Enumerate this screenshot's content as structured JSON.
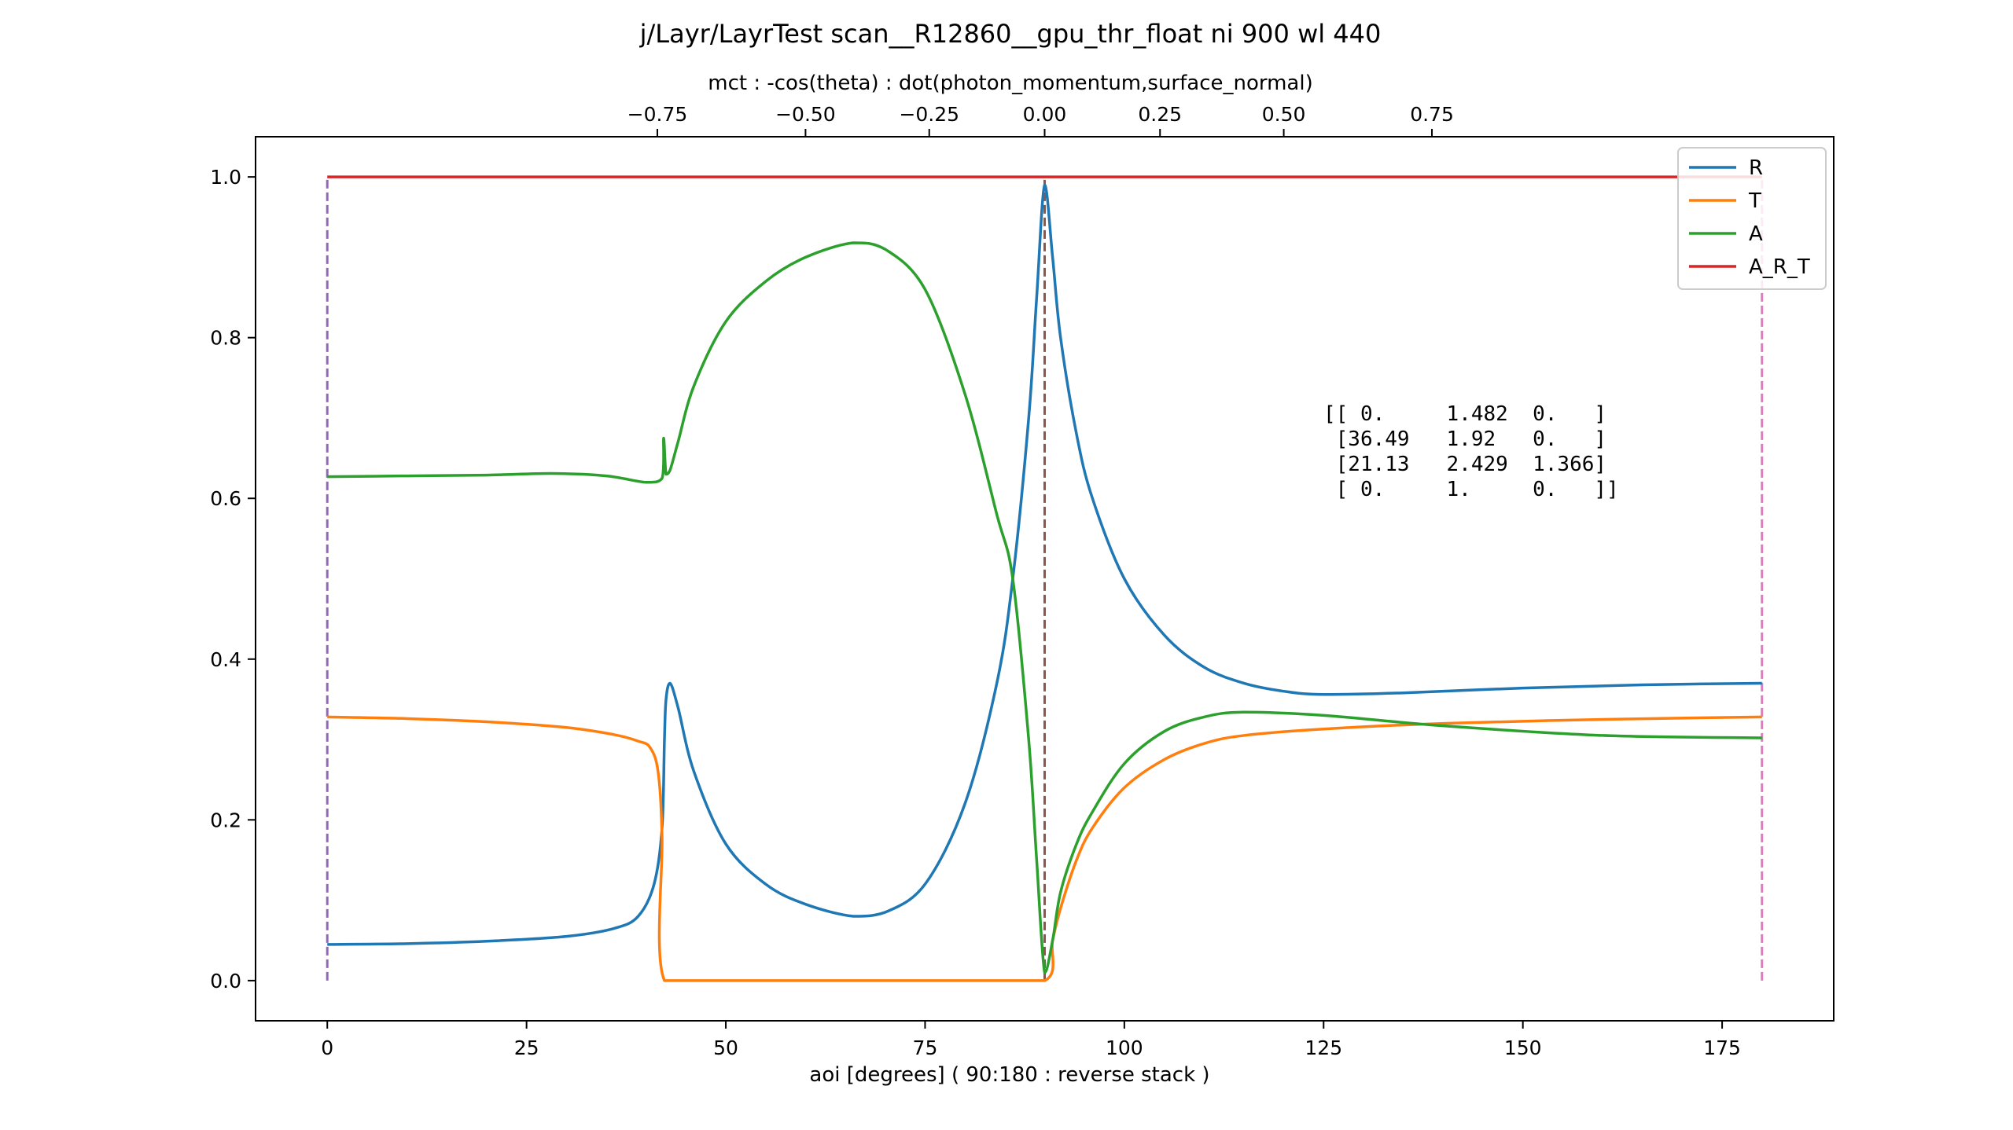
{
  "chart_data": {
    "type": "line",
    "title": "j/Layr/LayrTest scan__R12860__gpu_thr_float ni 900 wl 440",
    "xlabel": "aoi [degrees] ( 90:180 : reverse stack )",
    "ylabel": "",
    "top_xlabel": "mct : -cos(theta) : dot(photon_momentum,surface_normal)",
    "xlim": [
      -9,
      189
    ],
    "ylim": [
      -0.05,
      1.05
    ],
    "x_ticks": [
      0,
      25,
      50,
      75,
      100,
      125,
      150,
      175
    ],
    "x_tick_labels": [
      "0",
      "25",
      "50",
      "75",
      "100",
      "125",
      "150",
      "175"
    ],
    "y_ticks": [
      0.0,
      0.2,
      0.4,
      0.6,
      0.8,
      1.0
    ],
    "y_tick_labels": [
      "0.0",
      "0.2",
      "0.4",
      "0.6",
      "0.8",
      "1.0"
    ],
    "top_ticks": [
      -0.75,
      -0.5,
      -0.25,
      0.0,
      0.25,
      0.5,
      0.75
    ],
    "top_tick_labels": [
      "−0.75",
      "−0.50",
      "−0.25",
      "0.00",
      "0.25",
      "0.50",
      "0.75"
    ],
    "grid": false,
    "legend_position": "top-right",
    "series": [
      {
        "name": "R",
        "color": "#1f77b4",
        "x": [
          0,
          10,
          20,
          30,
          36,
          39,
          41,
          42,
          42.3,
          42.5,
          43,
          44,
          46,
          50,
          55,
          60,
          66,
          70,
          75,
          80,
          84,
          86,
          88,
          89,
          90,
          91,
          92,
          94,
          96,
          100,
          105,
          110,
          115,
          120,
          125,
          135,
          150,
          165,
          180
        ],
        "y": [
          0.045,
          0.046,
          0.049,
          0.055,
          0.065,
          0.08,
          0.12,
          0.19,
          0.3,
          0.35,
          0.37,
          0.34,
          0.26,
          0.17,
          0.12,
          0.095,
          0.08,
          0.085,
          0.12,
          0.22,
          0.37,
          0.5,
          0.7,
          0.85,
          0.99,
          0.9,
          0.8,
          0.68,
          0.6,
          0.5,
          0.43,
          0.39,
          0.37,
          0.36,
          0.356,
          0.358,
          0.364,
          0.368,
          0.37
        ]
      },
      {
        "name": "T",
        "color": "#ff7f0e",
        "x": [
          0,
          10,
          20,
          30,
          36,
          39,
          40.5,
          41.5,
          42,
          42.3,
          50,
          60,
          70,
          80,
          90,
          91,
          92,
          94,
          96,
          100,
          105,
          110,
          115,
          125,
          140,
          160,
          180
        ],
        "y": [
          0.328,
          0.326,
          0.322,
          0.315,
          0.306,
          0.298,
          0.29,
          0.26,
          0.18,
          0.0,
          0.0,
          0.0,
          0.0,
          0.0,
          0.0,
          0.05,
          0.09,
          0.15,
          0.19,
          0.24,
          0.275,
          0.295,
          0.305,
          0.313,
          0.32,
          0.325,
          0.328
        ]
      },
      {
        "name": "A",
        "color": "#2ca02c",
        "x": [
          0,
          10,
          20,
          28,
          35,
          40,
          42,
          42.2,
          42.5,
          43,
          44,
          46,
          50,
          55,
          60,
          66,
          70,
          75,
          80,
          84,
          86,
          88,
          89,
          90,
          91,
          92,
          94,
          96,
          100,
          105,
          110,
          115,
          125,
          140,
          160,
          180
        ],
        "y": [
          0.627,
          0.628,
          0.629,
          0.631,
          0.628,
          0.62,
          0.625,
          0.675,
          0.63,
          0.635,
          0.67,
          0.74,
          0.82,
          0.87,
          0.9,
          0.918,
          0.91,
          0.86,
          0.73,
          0.58,
          0.5,
          0.3,
          0.15,
          0.01,
          0.05,
          0.11,
          0.17,
          0.21,
          0.27,
          0.31,
          0.328,
          0.334,
          0.33,
          0.317,
          0.305,
          0.302
        ]
      },
      {
        "name": "A_R_T",
        "color": "#d62728",
        "x": [
          0,
          180
        ],
        "y": [
          1.0,
          1.0
        ]
      }
    ],
    "vlines": [
      {
        "x": 0,
        "y": [
          0.0,
          1.0
        ],
        "color": "#9467bd"
      },
      {
        "x": 90,
        "y": [
          0.0,
          1.0
        ],
        "color": "#8c564b"
      },
      {
        "x": 180,
        "y": [
          0.0,
          1.0
        ],
        "color": "#e377c2"
      }
    ],
    "annotation": {
      "lines": [
        "[[ 0.     1.482  0.   ]",
        " [36.49   1.92   0.   ]",
        " [21.13   2.429  1.366]",
        " [ 0.     1.     0.   ]]"
      ]
    }
  }
}
